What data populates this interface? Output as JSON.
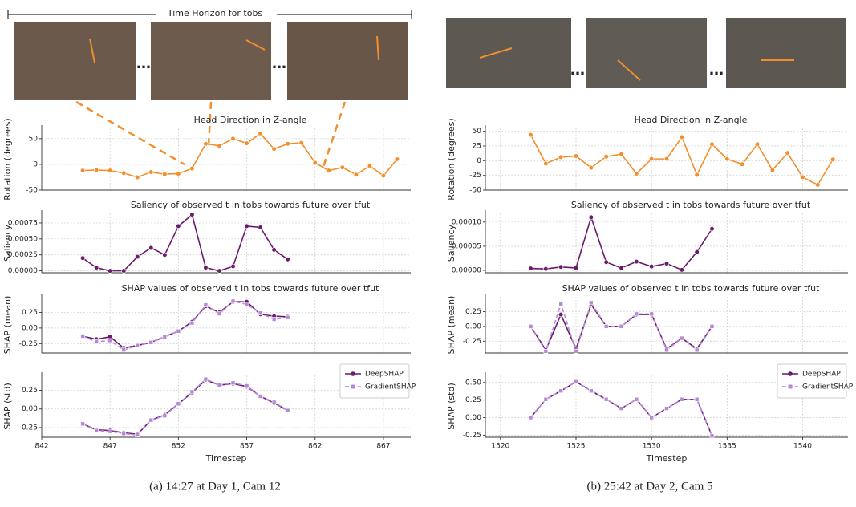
{
  "figure": {
    "header": "Time Horizon for tobs",
    "captions": [
      "(a) 14:27 at Day 1, Cam 12",
      "(b) 25:42 at Day 2, Cam 5"
    ]
  },
  "chart_data": [
    {
      "type": "line",
      "title": "Head Direction in Z-angle",
      "ylabel": "Rotation (degrees)",
      "grid": true,
      "marker": "o",
      "color": "#f28e2b",
      "x": [
        845,
        846,
        847,
        848,
        849,
        850,
        851,
        852,
        853,
        854,
        855,
        856,
        857,
        858,
        859,
        860,
        861,
        862,
        863,
        864,
        865,
        866,
        867,
        868
      ],
      "values": [
        -12,
        -11,
        -12,
        -17,
        -25,
        -15,
        -19,
        -18,
        -8,
        40,
        36,
        50,
        41,
        60,
        30,
        40,
        42,
        3,
        -12,
        -6,
        -20,
        -3,
        -22,
        10
      ],
      "xlim": [
        842,
        869
      ],
      "xticks": [
        842,
        847,
        852,
        857,
        862,
        867
      ],
      "ylim": [
        -50,
        70
      ],
      "yticks": [
        -50,
        0,
        50
      ]
    },
    {
      "type": "line",
      "title": "Saliency of observed t in tobs towards future over tfut",
      "ylabel": "Saliency",
      "grid": true,
      "marker": "o",
      "color": "#6a1b6a",
      "x": [
        845,
        846,
        847,
        848,
        849,
        850,
        851,
        852,
        853,
        854,
        855,
        856,
        857,
        858,
        859,
        860
      ],
      "values": [
        0.0002,
        5e-05,
        0,
        0,
        0.00022,
        0.00036,
        0.00025,
        0.0007,
        0.00088,
        5e-05,
        0,
        7e-05,
        0.0007,
        0.00068,
        0.00033,
        0.00018
      ],
      "xlim": [
        842,
        869
      ],
      "xticks": [
        842,
        847,
        852,
        857,
        862,
        867
      ],
      "ylim": [
        -3e-05,
        0.0009
      ],
      "yticks": [
        {
          "value": 0,
          "label": "0.00000"
        },
        {
          "value": 0.00025,
          "label": "0.00025"
        },
        {
          "value": 0.0005,
          "label": "0.00050"
        },
        {
          "value": 0.00075,
          "label": "0.00075"
        }
      ]
    },
    {
      "type": "line",
      "title": "SHAP values of observed t in tobs towards future over tfut",
      "ylabel": "SHAP (mean)",
      "grid": true,
      "x": [
        845,
        846,
        847,
        848,
        849,
        850,
        851,
        852,
        853,
        854,
        855,
        856,
        857,
        858,
        859,
        860
      ],
      "series": [
        {
          "color": "#6a1b6a",
          "marker": "o",
          "linestyle": "solid",
          "values": [
            -0.13,
            -0.18,
            -0.14,
            -0.32,
            -0.28,
            -0.23,
            -0.14,
            -0.05,
            0.1,
            0.35,
            0.25,
            0.42,
            0.42,
            0.22,
            0.19,
            0.18
          ]
        },
        {
          "color": "#b48ad8",
          "marker": "s",
          "linestyle": "dashed",
          "values": [
            -0.13,
            -0.22,
            -0.2,
            -0.35,
            -0.28,
            -0.23,
            -0.14,
            -0.05,
            0.08,
            0.37,
            0.23,
            0.43,
            0.38,
            0.24,
            0.14,
            0.17
          ]
        }
      ],
      "xlim": [
        842,
        869
      ],
      "xticks": [
        842,
        847,
        852,
        857,
        862,
        867
      ],
      "ylim": [
        -0.4,
        0.5
      ],
      "yticks": [
        -0.25,
        {
          "value": 0,
          "label": "0.00"
        },
        0.25
      ]
    },
    {
      "type": "line",
      "ylabel": "SHAP (std)",
      "xlabel": "Timestep",
      "grid": true,
      "legend": "upper right",
      "x": [
        845,
        846,
        847,
        848,
        849,
        850,
        851,
        852,
        853,
        854,
        855,
        856,
        857,
        858,
        859,
        860
      ],
      "series": [
        {
          "name": "DeepSHAP",
          "color": "#6a1b6a",
          "marker": "o",
          "linestyle": "solid",
          "values": [
            -0.2,
            -0.28,
            -0.29,
            -0.32,
            -0.34,
            -0.15,
            -0.08,
            0.07,
            0.22,
            0.39,
            0.32,
            0.34,
            0.3,
            0.17,
            0.08,
            -0.02
          ]
        },
        {
          "name": "GradientSHAP",
          "color": "#b48ad8",
          "marker": "s",
          "linestyle": "dashed",
          "values": [
            -0.2,
            -0.29,
            -0.3,
            -0.33,
            -0.35,
            -0.15,
            -0.09,
            0.07,
            0.23,
            0.4,
            0.32,
            0.35,
            0.31,
            0.17,
            0.09,
            -0.02
          ]
        }
      ],
      "xlim": [
        842,
        869
      ],
      "xticks": [
        842,
        847,
        852,
        857,
        862,
        867
      ],
      "ylim": [
        -0.38,
        0.45
      ],
      "yticks": [
        -0.25,
        {
          "value": 0,
          "label": "0.00"
        },
        0.25
      ]
    },
    {
      "type": "line",
      "title": "Head Direction in Z-angle",
      "ylabel": "Rotation (degrees)",
      "grid": true,
      "marker": "o",
      "color": "#f28e2b",
      "x": [
        1522,
        1523,
        1524,
        1525,
        1526,
        1527,
        1528,
        1529,
        1530,
        1531,
        1532,
        1533,
        1534,
        1535,
        1536,
        1537,
        1538,
        1539,
        1540,
        1541,
        1542
      ],
      "values": [
        44,
        -5,
        6,
        8,
        -12,
        7,
        11,
        -22,
        3,
        3,
        40,
        -24,
        28,
        3,
        -6,
        28,
        -16,
        13,
        -28,
        -41,
        2
      ],
      "xlim": [
        1519,
        1543
      ],
      "xticks": [
        1520,
        1525,
        1530,
        1535,
        1540
      ],
      "ylim": [
        -50,
        55
      ],
      "yticks": [
        -50,
        -25,
        0,
        25,
        50
      ]
    },
    {
      "type": "line",
      "title": "Saliency of observed t in tobs towards future over tfut",
      "ylabel": "Saliency",
      "grid": true,
      "marker": "o",
      "color": "#6a1b6a",
      "x": [
        1522,
        1523,
        1524,
        1525,
        1526,
        1527,
        1528,
        1529,
        1530,
        1531,
        1532,
        1533,
        1534
      ],
      "values": [
        4e-06,
        3e-06,
        7e-06,
        5e-06,
        0.00011,
        1.7e-05,
        5e-06,
        1.8e-05,
        8e-06,
        1.4e-05,
        1e-06,
        3.8e-05,
        8.6e-05
      ],
      "xlim": [
        1519,
        1543
      ],
      "xticks": [
        1520,
        1525,
        1530,
        1535,
        1540
      ],
      "ylim": [
        -5e-06,
        0.000118
      ],
      "yticks": [
        {
          "value": 0,
          "label": "0.00000"
        },
        {
          "value": 5e-05,
          "label": "0.00005"
        },
        {
          "value": 0.0001,
          "label": "0.00010"
        }
      ]
    },
    {
      "type": "line",
      "title": "SHAP values of observed t in tobs towards future over tfut",
      "ylabel": "SHAP (mean)",
      "grid": true,
      "x": [
        1522,
        1523,
        1524,
        1525,
        1526,
        1527,
        1528,
        1529,
        1530,
        1531,
        1532,
        1533,
        1534
      ],
      "series": [
        {
          "color": "#6a1b6a",
          "marker": "o",
          "linestyle": "solid",
          "values": [
            0,
            -0.4,
            0.2,
            -0.38,
            0.37,
            0,
            0,
            0.2,
            0.2,
            -0.38,
            -0.2,
            -0.38,
            0
          ]
        },
        {
          "color": "#b48ad8",
          "marker": "s",
          "linestyle": "dashed",
          "values": [
            0,
            -0.42,
            0.38,
            -0.42,
            0.4,
            0,
            0,
            0.21,
            0.21,
            -0.4,
            -0.2,
            -0.4,
            0
          ]
        }
      ],
      "xlim": [
        1519,
        1543
      ],
      "xticks": [
        1520,
        1525,
        1530,
        1535,
        1540
      ],
      "ylim": [
        -0.45,
        0.5
      ],
      "yticks": [
        -0.25,
        {
          "value": 0,
          "label": "0.00"
        },
        0.25
      ]
    },
    {
      "type": "line",
      "ylabel": "SHAP (std)",
      "xlabel": "Timestep",
      "grid": true,
      "legend": "upper right",
      "x": [
        1522,
        1523,
        1524,
        1525,
        1526,
        1527,
        1528,
        1529,
        1530,
        1531,
        1532,
        1533,
        1534
      ],
      "series": [
        {
          "name": "DeepSHAP",
          "color": "#6a1b6a",
          "marker": "o",
          "linestyle": "solid",
          "values": [
            0,
            0.26,
            0.38,
            0.51,
            0.38,
            0.26,
            0.13,
            0.26,
            0,
            0.13,
            0.26,
            0.26,
            -0.26
          ]
        },
        {
          "name": "GradientSHAP",
          "color": "#b48ad8",
          "marker": "s",
          "linestyle": "dashed",
          "values": [
            0,
            0.26,
            0.38,
            0.51,
            0.38,
            0.26,
            0.13,
            0.26,
            0,
            0.13,
            0.26,
            0.26,
            -0.26
          ]
        }
      ],
      "xlim": [
        1519,
        1543
      ],
      "xticks": [
        1520,
        1525,
        1530,
        1535,
        1540
      ],
      "ylim": [
        -0.28,
        0.6
      ],
      "yticks": [
        -0.25,
        {
          "value": 0,
          "label": "0.00"
        },
        0.25,
        {
          "value": 0.5,
          "label": "0.50"
        }
      ]
    }
  ]
}
